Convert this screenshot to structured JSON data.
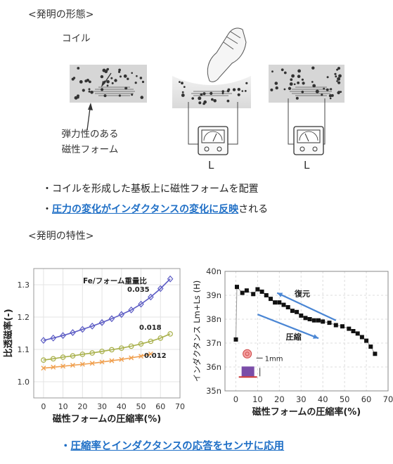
{
  "form_section": {
    "title": "<発明の形態>",
    "coil_label": "コイル",
    "foam_label_line1": "弾力性のある",
    "foam_label_line2": "磁性フォーム",
    "meter_label_1": "L",
    "meter_label_2": "L"
  },
  "bullets": {
    "b1": "・コイルを形成した基板上に磁性フォームを配置",
    "b2_prefix": "・",
    "b2_blue": "圧力の変化がインダクタンスの変化に反映",
    "b2_suffix": "される"
  },
  "char_section": {
    "title": "<発明の特性>"
  },
  "chart_data": [
    {
      "type": "line",
      "title": "",
      "legend_title": "Fe/フォーム重量比",
      "xlabel": "磁性フォームの圧縮率(%)",
      "ylabel": "比透磁率(-)",
      "xlim": [
        -5,
        70
      ],
      "ylim": [
        0.95,
        1.35
      ],
      "xticks": [
        "0",
        "10",
        "20",
        "30",
        "40",
        "50",
        "60",
        "70"
      ],
      "yticks": [
        "1.0",
        "1.1",
        "1.2",
        "1.3"
      ],
      "grid": true,
      "series": [
        {
          "name": "0.035",
          "color": "#5b5bc4",
          "marker": "diamond",
          "x": [
            0,
            5,
            10,
            15,
            20,
            25,
            30,
            35,
            40,
            45,
            50,
            55,
            60,
            65
          ],
          "y": [
            1.128,
            1.135,
            1.143,
            1.152,
            1.162,
            1.172,
            1.183,
            1.195,
            1.208,
            1.222,
            1.24,
            1.262,
            1.288,
            1.318
          ]
        },
        {
          "name": "0.018",
          "color": "#a8b04a",
          "marker": "circle",
          "x": [
            0,
            5,
            10,
            15,
            20,
            25,
            30,
            35,
            40,
            45,
            50,
            55,
            60,
            65
          ],
          "y": [
            1.067,
            1.071,
            1.076,
            1.08,
            1.085,
            1.089,
            1.094,
            1.099,
            1.104,
            1.11,
            1.117,
            1.125,
            1.135,
            1.148
          ]
        },
        {
          "name": "0.012",
          "color": "#f0a050",
          "marker": "x",
          "x": [
            0,
            5,
            10,
            15,
            20,
            25,
            30,
            35,
            40,
            45,
            50,
            55
          ],
          "y": [
            1.042,
            1.045,
            1.048,
            1.051,
            1.054,
            1.057,
            1.061,
            1.065,
            1.069,
            1.074,
            1.079,
            1.086
          ]
        }
      ]
    },
    {
      "type": "scatter",
      "title": "",
      "xlabel": "磁性フォームの圧縮率(%)",
      "ylabel": "インダクタンス Lm+Ls (H)",
      "xlim": [
        -5,
        70
      ],
      "ylim": [
        35,
        40
      ],
      "xticks": [
        "0",
        "10",
        "20",
        "30",
        "40",
        "50",
        "60",
        "70"
      ],
      "yticks": [
        "35n",
        "36n",
        "37n",
        "38n",
        "39n",
        "40n"
      ],
      "grid": true,
      "annotations": {
        "restore": "復元",
        "compress": "圧縮",
        "size": "1mm"
      },
      "series": [
        {
          "name": "",
          "color": "#111111",
          "marker": "square",
          "x": [
            0,
            0.5,
            3,
            5,
            8,
            10,
            12,
            14,
            16,
            18,
            20,
            22,
            24,
            26,
            28,
            30,
            32,
            34,
            36,
            38,
            40,
            43,
            46,
            49,
            52,
            54,
            56,
            58,
            60,
            62,
            64
          ],
          "y": [
            37.15,
            39.35,
            39.1,
            39.2,
            39.05,
            39.25,
            39.15,
            39.0,
            38.85,
            38.7,
            38.7,
            38.6,
            38.5,
            38.35,
            38.3,
            38.15,
            38.05,
            38.0,
            37.95,
            37.95,
            37.9,
            37.85,
            37.75,
            37.7,
            37.6,
            37.5,
            37.4,
            37.25,
            37.1,
            36.85,
            36.55
          ]
        }
      ]
    }
  ],
  "closing": {
    "prefix": "・",
    "text": "圧縮率とインダクタンスの応答をセンサに応用"
  }
}
